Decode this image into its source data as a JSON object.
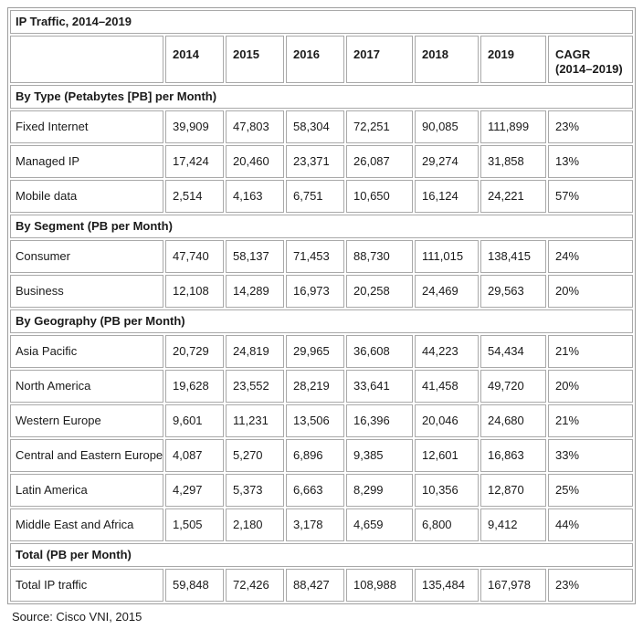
{
  "title_row": "IP Traffic, 2014–2019",
  "header": {
    "corner": "",
    "years": [
      "2014",
      "2015",
      "2016",
      "2017",
      "2018",
      "2019"
    ],
    "cagr": [
      "CAGR",
      "(2014–2019)"
    ]
  },
  "source_note": "Source: Cisco VNI, 2015",
  "colors": {
    "heading_text": "#2d6a78",
    "grid_border": "#a9a9a9",
    "body_text": "#1a1a1a",
    "background": "#ffffff"
  },
  "chart_data": {
    "type": "table",
    "title": "IP Traffic, 2014–2019",
    "unit": "Petabytes (PB) per Month",
    "x": [
      2014,
      2015,
      2016,
      2017,
      2018,
      2019
    ],
    "cagr_column_label": "CAGR (2014–2019)",
    "sections": [
      {
        "label": "By Type (Petabytes [PB] per Month)",
        "series": [
          {
            "name": "Fixed Internet",
            "values": [
              39909,
              47803,
              58304,
              72251,
              90085,
              111899
            ],
            "cagr": "23%"
          },
          {
            "name": "Managed IP",
            "values": [
              17424,
              20460,
              23371,
              26087,
              29274,
              31858
            ],
            "cagr": "13%"
          },
          {
            "name": "Mobile data",
            "values": [
              2514,
              4163,
              6751,
              10650,
              16124,
              24221
            ],
            "cagr": "57%"
          }
        ]
      },
      {
        "label": "By Segment (PB per Month)",
        "series": [
          {
            "name": "Consumer",
            "values": [
              47740,
              58137,
              71453,
              88730,
              111015,
              138415
            ],
            "cagr": "24%"
          },
          {
            "name": "Business",
            "values": [
              12108,
              14289,
              16973,
              20258,
              24469,
              29563
            ],
            "cagr": "20%"
          }
        ]
      },
      {
        "label": "By Geography (PB per Month)",
        "series": [
          {
            "name": "Asia Pacific",
            "values": [
              20729,
              24819,
              29965,
              36608,
              44223,
              54434
            ],
            "cagr": "21%"
          },
          {
            "name": "North America",
            "values": [
              19628,
              23552,
              28219,
              33641,
              41458,
              49720
            ],
            "cagr": "20%"
          },
          {
            "name": "Western Europe",
            "values": [
              9601,
              11231,
              13506,
              16396,
              20046,
              24680
            ],
            "cagr": "21%"
          },
          {
            "name": "Central and Eastern Europe",
            "values": [
              4087,
              5270,
              6896,
              9385,
              12601,
              16863
            ],
            "cagr": "33%"
          },
          {
            "name": "Latin America",
            "values": [
              4297,
              5373,
              6663,
              8299,
              10356,
              12870
            ],
            "cagr": "25%"
          },
          {
            "name": "Middle East and Africa",
            "values": [
              1505,
              2180,
              3178,
              4659,
              6800,
              9412
            ],
            "cagr": "44%"
          }
        ]
      },
      {
        "label": "Total (PB per Month)",
        "series": [
          {
            "name": "Total IP traffic",
            "values": [
              59848,
              72426,
              88427,
              108988,
              135484,
              167978
            ],
            "cagr": "23%"
          }
        ]
      }
    ]
  }
}
